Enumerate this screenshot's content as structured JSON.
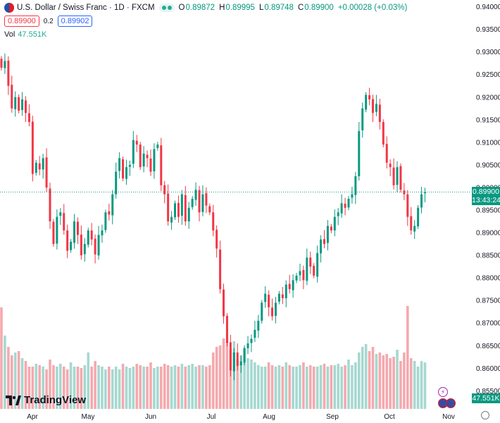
{
  "legend": {
    "title": "U.S. Dollar / Swiss Franc · 1D · FXCM",
    "open_label": "O",
    "open": "0.89872",
    "high_label": "H",
    "high": "0.89995",
    "low_label": "L",
    "low": "0.89748",
    "close_label": "C",
    "close": "0.89900",
    "change": "+0.00028 (+0.03%)"
  },
  "trade": {
    "sell": "0.89900",
    "spread": "0.2",
    "buy": "0.89902"
  },
  "volume": {
    "label": "Vol",
    "value": "47.551K"
  },
  "brand": "TradingView",
  "tags": {
    "price": "0.89900",
    "countdown": "13:43:24",
    "volume": "47.551K"
  },
  "colors": {
    "up": "#089981",
    "down": "#f23645",
    "vol_up": "#a6d8d0",
    "vol_down": "#f5a9ae"
  },
  "chart_data": {
    "type": "candlestick",
    "y_ticks": [
      "0.85500",
      "0.86000",
      "0.86500",
      "0.87000",
      "0.87500",
      "0.88000",
      "0.88500",
      "0.89000",
      "0.89500",
      "0.90000",
      "0.90500",
      "0.91000",
      "0.91500",
      "0.92000",
      "0.92500",
      "0.93000",
      "0.93500",
      "0.94000"
    ],
    "ylim": [
      0.851,
      0.9415
    ],
    "x_ticks": [
      "Apr",
      "May",
      "Jun",
      "Jul",
      "Aug",
      "Sep",
      "Oct",
      "Nov"
    ],
    "last_price": 0.899,
    "closes": [
      0.9265,
      0.928,
      0.9225,
      0.9175,
      0.92,
      0.917,
      0.9195,
      0.9165,
      0.9145,
      0.903,
      0.9055,
      0.904,
      0.9065,
      0.9,
      0.8925,
      0.8875,
      0.8935,
      0.8945,
      0.8905,
      0.886,
      0.888,
      0.8925,
      0.8895,
      0.885,
      0.8875,
      0.8905,
      0.8885,
      0.8852,
      0.8895,
      0.8905,
      0.8945,
      0.894,
      0.8985,
      0.9035,
      0.9065,
      0.902,
      0.9045,
      0.905,
      0.9105,
      0.9095,
      0.9045,
      0.9075,
      0.9065,
      0.9035,
      0.9085,
      0.9095,
      0.9005,
      0.8985,
      0.8925,
      0.8935,
      0.8965,
      0.8935,
      0.8985,
      0.8925,
      0.8955,
      0.8975,
      0.8995,
      0.8945,
      0.8985,
      0.896,
      0.8945,
      0.8905,
      0.8865,
      0.8775,
      0.8715,
      0.8655,
      0.8595,
      0.8635,
      0.8605,
      0.8615,
      0.8645,
      0.8655,
      0.8665,
      0.8685,
      0.8705,
      0.8745,
      0.8765,
      0.8735,
      0.8715,
      0.8745,
      0.8765,
      0.8755,
      0.8785,
      0.8775,
      0.8795,
      0.8805,
      0.8815,
      0.8795,
      0.8845,
      0.8825,
      0.8805,
      0.8855,
      0.8885,
      0.8875,
      0.8915,
      0.8905,
      0.8935,
      0.8945,
      0.8965,
      0.8955,
      0.8975,
      0.8985,
      0.9025,
      0.9125,
      0.9175,
      0.9205,
      0.9195,
      0.9165,
      0.9185,
      0.9145,
      0.9095,
      0.9055,
      0.9045,
      0.9005,
      0.9045,
      0.8995,
      0.8985,
      0.8935,
      0.8905,
      0.8915,
      0.8955,
      0.8985,
      0.899
    ],
    "volumes": [
      0.72,
      0.52,
      0.44,
      0.38,
      0.4,
      0.41,
      0.36,
      0.34,
      0.3,
      0.3,
      0.32,
      0.31,
      0.3,
      0.28,
      0.35,
      0.31,
      0.3,
      0.32,
      0.3,
      0.28,
      0.33,
      0.3,
      0.3,
      0.29,
      0.31,
      0.4,
      0.3,
      0.34,
      0.31,
      0.3,
      0.28,
      0.3,
      0.28,
      0.3,
      0.28,
      0.32,
      0.3,
      0.29,
      0.3,
      0.32,
      0.31,
      0.3,
      0.3,
      0.33,
      0.29,
      0.3,
      0.3,
      0.32,
      0.31,
      0.3,
      0.31,
      0.3,
      0.32,
      0.3,
      0.31,
      0.32,
      0.3,
      0.31,
      0.31,
      0.3,
      0.31,
      0.4,
      0.44,
      0.45,
      0.5,
      0.46,
      0.42,
      0.48,
      0.35,
      0.38,
      0.42,
      0.36,
      0.35,
      0.33,
      0.31,
      0.3,
      0.3,
      0.33,
      0.31,
      0.3,
      0.31,
      0.3,
      0.33,
      0.31,
      0.3,
      0.3,
      0.31,
      0.33,
      0.3,
      0.31,
      0.3,
      0.3,
      0.31,
      0.32,
      0.3,
      0.31,
      0.31,
      0.32,
      0.3,
      0.31,
      0.35,
      0.31,
      0.33,
      0.4,
      0.44,
      0.46,
      0.41,
      0.44,
      0.39,
      0.4,
      0.38,
      0.39,
      0.36,
      0.37,
      0.42,
      0.34,
      0.4,
      0.73,
      0.36,
      0.34,
      0.3,
      0.34,
      0.33
    ]
  }
}
